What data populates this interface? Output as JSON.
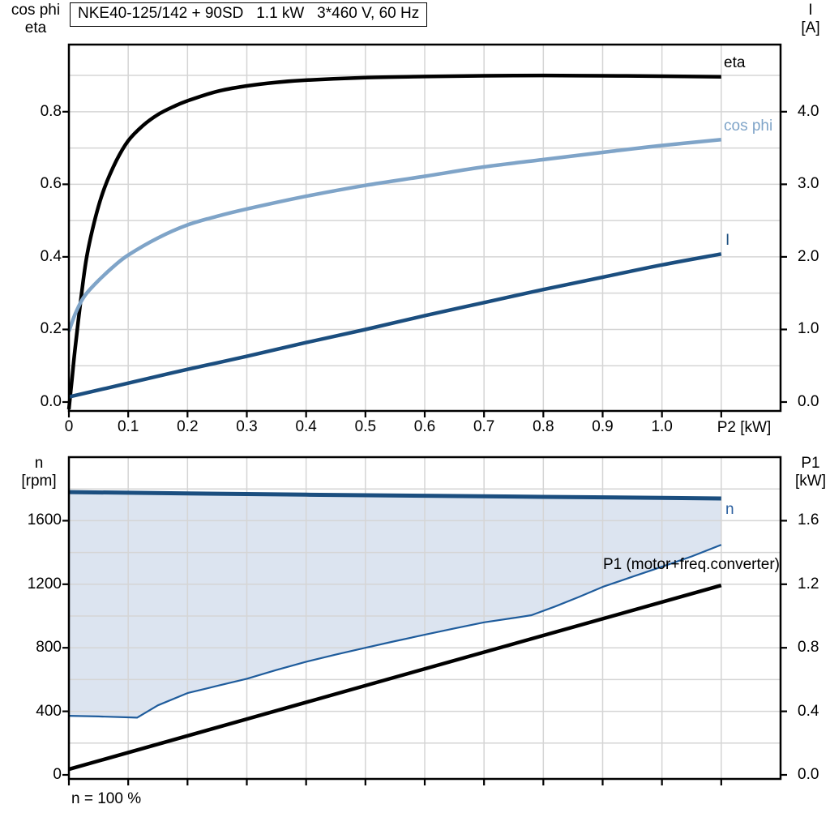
{
  "colors": {
    "eta": "#000000",
    "cos_phi": "#7fa4c8",
    "current": "#1b4e7f",
    "speed": "#1b4e7f",
    "min_speed": "#1f5c9c",
    "band_fill": "#dce4f0",
    "p1": "#000000",
    "grid": "#d5d5d5",
    "frame": "#000000",
    "speed_label": "#2a5f9f",
    "text": "#000000"
  },
  "chart_data": [
    {
      "type": "line",
      "title": "NKE40-125/142 + 90SD   1.1 kW   3*460 V, 60 Hz",
      "x_axis": {
        "label": "P2 [kW]",
        "min": 0,
        "max": 1.2,
        "tick_step": 0.1,
        "tick_max": 1.1,
        "grid": true,
        "tick_labels": [
          "0",
          "0.1",
          "0.2",
          "0.3",
          "0.4",
          "0.5",
          "0.6",
          "0.7",
          "0.8",
          "0.9",
          "1.0"
        ]
      },
      "y_left": {
        "label_lines": [
          "cos phi",
          "eta"
        ],
        "min": 0,
        "max": 0.985,
        "grid_step": 0.1,
        "grid_max": 0.9,
        "tick_values": [
          0,
          0.2,
          0.4,
          0.6,
          0.8
        ],
        "tick_labels": [
          "0.0",
          "0.2",
          "0.4",
          "0.6",
          "0.8"
        ]
      },
      "y_right": {
        "label_lines": [
          "I",
          "[A]"
        ],
        "min": 0,
        "max": 4.925,
        "tick_values": [
          0,
          1,
          2,
          3,
          4
        ],
        "tick_labels": [
          "0.0",
          "1.0",
          "2.0",
          "3.0",
          "4.0"
        ]
      },
      "series": [
        {
          "name": "eta",
          "label": "eta",
          "axis": "left",
          "color_key": "eta",
          "width": 4.5,
          "smooth": true,
          "points": [
            [
              0,
              -0.02
            ],
            [
              0.005,
              0.06
            ],
            [
              0.01,
              0.14
            ],
            [
              0.02,
              0.28
            ],
            [
              0.03,
              0.4
            ],
            [
              0.045,
              0.51
            ],
            [
              0.06,
              0.59
            ],
            [
              0.08,
              0.665
            ],
            [
              0.1,
              0.72
            ],
            [
              0.125,
              0.762
            ],
            [
              0.15,
              0.792
            ],
            [
              0.175,
              0.813
            ],
            [
              0.2,
              0.83
            ],
            [
              0.25,
              0.856
            ],
            [
              0.3,
              0.871
            ],
            [
              0.35,
              0.881
            ],
            [
              0.4,
              0.887
            ],
            [
              0.5,
              0.894
            ],
            [
              0.6,
              0.897
            ],
            [
              0.7,
              0.899
            ],
            [
              0.8,
              0.9
            ],
            [
              0.9,
              0.899
            ],
            [
              1.0,
              0.898
            ],
            [
              1.1,
              0.896
            ]
          ]
        },
        {
          "name": "cos_phi",
          "label": "cos phi",
          "axis": "left",
          "color_key": "cos_phi",
          "width": 4.5,
          "smooth": true,
          "points": [
            [
              0,
              0.195
            ],
            [
              0.01,
              0.24
            ],
            [
              0.02,
              0.275
            ],
            [
              0.03,
              0.3
            ],
            [
              0.05,
              0.335
            ],
            [
              0.075,
              0.373
            ],
            [
              0.1,
              0.405
            ],
            [
              0.15,
              0.452
            ],
            [
              0.2,
              0.488
            ],
            [
              0.25,
              0.512
            ],
            [
              0.3,
              0.532
            ],
            [
              0.4,
              0.567
            ],
            [
              0.5,
              0.597
            ],
            [
              0.6,
              0.622
            ],
            [
              0.7,
              0.648
            ],
            [
              0.8,
              0.668
            ],
            [
              0.9,
              0.688
            ],
            [
              1.0,
              0.707
            ],
            [
              1.1,
              0.723
            ]
          ]
        },
        {
          "name": "current",
          "label": "I",
          "axis": "right",
          "color_key": "current",
          "width": 4.5,
          "smooth": true,
          "points": [
            [
              0,
              0.07
            ],
            [
              0.1,
              0.26
            ],
            [
              0.2,
              0.45
            ],
            [
              0.3,
              0.63
            ],
            [
              0.4,
              0.82
            ],
            [
              0.5,
              1.0
            ],
            [
              0.6,
              1.19
            ],
            [
              0.7,
              1.37
            ],
            [
              0.8,
              1.55
            ],
            [
              0.9,
              1.72
            ],
            [
              1.0,
              1.89
            ],
            [
              1.1,
              2.04
            ]
          ]
        }
      ]
    },
    {
      "type": "line",
      "annotation": "n = 100 %",
      "x_axis": {
        "label": "",
        "min": 0,
        "max": 1.2,
        "tick_step": 0.1,
        "tick_max": 1.1,
        "grid": true,
        "tick_labels": []
      },
      "y_left": {
        "label_lines": [
          "n",
          "[rpm]"
        ],
        "min": 0,
        "max": 2000,
        "grid_step": 200,
        "grid_max": 1800,
        "tick_values": [
          0,
          400,
          800,
          1200,
          1600
        ],
        "tick_labels": [
          "0",
          "400",
          "800",
          "1200",
          "1600"
        ]
      },
      "y_right": {
        "label_lines": [
          "P1",
          "[kW]"
        ],
        "min": 0,
        "max": 2.0,
        "tick_values": [
          0,
          0.4,
          0.8,
          1.2,
          1.6
        ],
        "tick_labels": [
          "0.0",
          "0.4",
          "0.8",
          "1.2",
          "1.6"
        ]
      },
      "band": {
        "upper": "speed",
        "lower": "min_speed",
        "fill_key": "band_fill"
      },
      "series": [
        {
          "name": "speed",
          "label": "n",
          "axis": "left",
          "color_key": "speed",
          "width": 5,
          "smooth": false,
          "points": [
            [
              0,
              1780
            ],
            [
              0.2,
              1772
            ],
            [
              0.4,
              1764
            ],
            [
              0.6,
              1757
            ],
            [
              0.8,
              1750
            ],
            [
              1.0,
              1744
            ],
            [
              1.1,
              1740
            ]
          ]
        },
        {
          "name": "min_speed",
          "label": "",
          "axis": "left",
          "color_key": "min_speed",
          "width": 2.2,
          "smooth": false,
          "points": [
            [
              0,
              372
            ],
            [
              0.05,
              368
            ],
            [
              0.1,
              362
            ],
            [
              0.115,
              360
            ],
            [
              0.15,
              438
            ],
            [
              0.2,
              515
            ],
            [
              0.25,
              560
            ],
            [
              0.3,
              605
            ],
            [
              0.35,
              660
            ],
            [
              0.4,
              712
            ],
            [
              0.45,
              757
            ],
            [
              0.5,
              800
            ],
            [
              0.55,
              842
            ],
            [
              0.6,
              882
            ],
            [
              0.65,
              922
            ],
            [
              0.7,
              960
            ],
            [
              0.75,
              988
            ],
            [
              0.78,
              1005
            ],
            [
              0.82,
              1060
            ],
            [
              0.86,
              1120
            ],
            [
              0.9,
              1183
            ],
            [
              0.95,
              1247
            ],
            [
              1.0,
              1310
            ],
            [
              1.05,
              1375
            ],
            [
              1.1,
              1448
            ]
          ]
        },
        {
          "name": "p1",
          "label": "P1 (motor+freq.converter)",
          "axis": "right",
          "color_key": "p1",
          "width": 4.5,
          "smooth": false,
          "points": [
            [
              0,
              0.035
            ],
            [
              0.55,
              0.615
            ],
            [
              1.1,
              1.193
            ]
          ]
        }
      ]
    }
  ]
}
